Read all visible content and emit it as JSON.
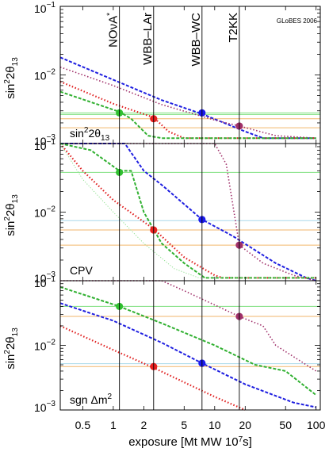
{
  "credit": "GLoBES 2006",
  "chart_data": {
    "type": "line",
    "xlabel": "exposure [Mt MW 10",
    "xlabel_sup": "7",
    "xlabel_end": "s]",
    "xscale": "log",
    "xlim": [
      0.3,
      110
    ],
    "x_ticks": [
      {
        "v": 0.5,
        "label": "0.5"
      },
      {
        "v": 1,
        "label": "1"
      },
      {
        "v": 2,
        "label": "2"
      },
      {
        "v": 5,
        "label": "5"
      },
      {
        "v": 10,
        "label": "10"
      },
      {
        "v": 20,
        "label": "20"
      },
      {
        "v": 50,
        "label": "50"
      },
      {
        "v": 100,
        "label": "100"
      }
    ],
    "experiments": [
      {
        "name": "NOνA",
        "sup": "*",
        "x": 1.15
      },
      {
        "name": "WBB–LAr",
        "sup": "",
        "x": 2.5
      },
      {
        "name": "WBB–WC",
        "sup": "",
        "x": 7.5
      },
      {
        "name": "T2KK",
        "sup": "",
        "x": 17.5
      }
    ],
    "panels": [
      {
        "ylabel_base": "sin",
        "ylabel_sup": "2",
        "ylabel_mid": "2θ",
        "ylabel_sub": "13",
        "title_base": "sin",
        "title_sup": "2",
        "title_mid": "2θ",
        "title_sub": "13",
        "ylim": [
          0.001,
          0.1
        ],
        "y_ticks": [
          {
            "v": 0.001,
            "base": "10",
            "exp": "−3"
          },
          {
            "v": 0.01,
            "base": "10",
            "exp": "−2"
          },
          {
            "v": 0.1,
            "base": "10",
            "exp": "−1"
          }
        ],
        "hlines": [
          {
            "color": "#7fe07f",
            "y": 0.0028
          },
          {
            "color": "#7fe07f",
            "y": 0.00265
          },
          {
            "color": "#f2b66b",
            "y": 0.0023
          },
          {
            "color": "#f2b66b",
            "y": 0.0017
          }
        ],
        "series": [
          {
            "color": "#1f1fe0",
            "dash": "4,2",
            "width": 2,
            "points": [
              [
                0.3,
                0.018
              ],
              [
                1,
                0.0085
              ],
              [
                3,
                0.0043
              ],
              [
                7.5,
                0.0027
              ],
              [
                20,
                0.0015
              ],
              [
                30,
                0.0012
              ],
              [
                100,
                0.0012
              ]
            ]
          },
          {
            "color": "#a0306a",
            "dash": "1.5,2.5",
            "width": 1.6,
            "points": [
              [
                0.3,
                0.013
              ],
              [
                1,
                0.007
              ],
              [
                3,
                0.0037
              ],
              [
                10,
                0.0022
              ],
              [
                17.5,
                0.0018
              ],
              [
                40,
                0.0013
              ],
              [
                100,
                0.0012
              ]
            ]
          },
          {
            "color": "#e02020",
            "dash": "1.5,2.5",
            "width": 2.2,
            "points": [
              [
                0.3,
                0.008
              ],
              [
                1,
                0.0038
              ],
              [
                2.5,
                0.0024
              ],
              [
                3.5,
                0.0015
              ],
              [
                5,
                0.0012
              ],
              [
                100,
                0.0012
              ]
            ]
          },
          {
            "color": "#30b030",
            "dash": "4,2",
            "width": 2,
            "points": [
              [
                0.3,
                0.0057
              ],
              [
                1.15,
                0.0029
              ],
              [
                1.5,
                0.0023
              ],
              [
                2.2,
                0.0013
              ],
              [
                3,
                0.0012
              ],
              [
                100,
                0.0012
              ]
            ]
          }
        ],
        "markers": [
          {
            "color": "#30c030",
            "x": 1.15,
            "y": 0.0028
          },
          {
            "color": "#e82020",
            "x": 2.5,
            "y": 0.0023
          },
          {
            "color": "#1a1aee",
            "x": 7.5,
            "y": 0.0028
          },
          {
            "color": "#a0306a",
            "x": 17.5,
            "y": 0.0018
          }
        ]
      },
      {
        "ylabel_base": "sin",
        "ylabel_sup": "2",
        "ylabel_mid": "2θ",
        "ylabel_sub": "13",
        "title_base": "CPV",
        "title_sup": "",
        "title_mid": "",
        "title_sub": "",
        "ylim": [
          0.001,
          0.1
        ],
        "y_ticks": [
          {
            "v": 0.001,
            "base": "10",
            "exp": "−3"
          },
          {
            "v": 0.01,
            "base": "10",
            "exp": "−2"
          },
          {
            "v": 0.1,
            "base": "10",
            "exp": "−1"
          }
        ],
        "hlines": [
          {
            "color": "#7fe07f",
            "y": 0.038
          },
          {
            "color": "#a8d8ea",
            "y": 0.0075
          },
          {
            "color": "#f2b66b",
            "y": 0.0055
          },
          {
            "color": "#f2b66b",
            "y": 0.0033
          }
        ],
        "series": [
          {
            "color": "#1f1fe0",
            "dash": "4,2",
            "width": 2,
            "points": [
              [
                0.3,
                0.1
              ],
              [
                1.3,
                0.1
              ],
              [
                2,
                0.04
              ],
              [
                3,
                0.025
              ],
              [
                7.5,
                0.0078
              ],
              [
                15,
                0.0045
              ],
              [
                40,
                0.0018
              ],
              [
                80,
                0.0011
              ],
              [
                100,
                0.001
              ]
            ]
          },
          {
            "color": "#a0306a",
            "dash": "1.5,2.5",
            "width": 1.6,
            "points": [
              [
                0.3,
                0.1
              ],
              [
                10,
                0.1
              ],
              [
                13,
                0.05
              ],
              [
                17.5,
                0.0033
              ],
              [
                30,
                0.0018
              ],
              [
                60,
                0.0012
              ],
              [
                100,
                0.001
              ]
            ]
          },
          {
            "color": "#e02020",
            "dash": "1.5,2.5",
            "width": 2.2,
            "points": [
              [
                0.3,
                0.1
              ],
              [
                0.5,
                0.04
              ],
              [
                1,
                0.015
              ],
              [
                2.5,
                0.0057
              ],
              [
                5,
                0.0022
              ],
              [
                10,
                0.0012
              ],
              [
                12,
                0.0011
              ],
              [
                100,
                0.0011
              ]
            ]
          },
          {
            "color": "#30b030",
            "dash": "4,2",
            "width": 2,
            "points": [
              [
                0.3,
                0.1
              ],
              [
                0.6,
                0.08
              ],
              [
                1.15,
                0.04
              ],
              [
                1.5,
                0.04
              ],
              [
                2,
                0.01
              ],
              [
                3,
                0.0035
              ],
              [
                5,
                0.0018
              ],
              [
                8,
                0.0011
              ],
              [
                100,
                0.0011
              ]
            ]
          },
          {
            "color": "#90e090",
            "dash": "1.2,2",
            "width": 1,
            "points": [
              [
                0.3,
                0.1
              ],
              [
                0.5,
                0.03
              ],
              [
                1,
                0.01
              ],
              [
                2,
                0.0035
              ],
              [
                4,
                0.0015
              ],
              [
                7,
                0.0011
              ],
              [
                100,
                0.0011
              ]
            ]
          }
        ],
        "markers": [
          {
            "color": "#30c030",
            "x": 1.15,
            "y": 0.038
          },
          {
            "color": "#e82020",
            "x": 2.5,
            "y": 0.0055
          },
          {
            "color": "#1a1aee",
            "x": 7.5,
            "y": 0.0078
          },
          {
            "color": "#a0306a",
            "x": 17.5,
            "y": 0.0033
          }
        ]
      },
      {
        "ylabel_base": "sin",
        "ylabel_sup": "2",
        "ylabel_mid": "2θ",
        "ylabel_sub": "13",
        "title_base": "sgn Δm",
        "title_sup": "2",
        "title_mid": "",
        "title_sub": "",
        "ylim": [
          0.001,
          0.1
        ],
        "y_ticks": [
          {
            "v": 0.001,
            "base": "10",
            "exp": "−3"
          },
          {
            "v": 0.01,
            "base": "10",
            "exp": "−2"
          },
          {
            "v": 0.1,
            "base": "10",
            "exp": "−1"
          }
        ],
        "hlines": [
          {
            "color": "#7fe07f",
            "y": 0.04
          },
          {
            "color": "#f2b66b",
            "y": 0.028
          },
          {
            "color": "#a8d8ea",
            "y": 0.0052
          },
          {
            "color": "#f2b66b",
            "y": 0.0047
          }
        ],
        "series": [
          {
            "color": "#1f1fe0",
            "dash": "4,2",
            "width": 2,
            "points": [
              [
                0.3,
                0.045
              ],
              [
                1,
                0.024
              ],
              [
                3,
                0.011
              ],
              [
                7.5,
                0.0053
              ],
              [
                20,
                0.0025
              ],
              [
                60,
                0.0013
              ],
              [
                100,
                0.0011
              ]
            ]
          },
          {
            "color": "#a0306a",
            "dash": "1.5,2.5",
            "width": 1.6,
            "points": [
              [
                0.3,
                0.1
              ],
              [
                3,
                0.1
              ],
              [
                5,
                0.07
              ],
              [
                17.5,
                0.028
              ],
              [
                30,
                0.02
              ],
              [
                40,
                0.01
              ],
              [
                100,
                0.004
              ]
            ]
          },
          {
            "color": "#e02020",
            "dash": "1.5,2.5",
            "width": 2.2,
            "points": [
              [
                0.3,
                0.02
              ],
              [
                1,
                0.0085
              ],
              [
                2.5,
                0.0045
              ],
              [
                10,
                0.0016
              ],
              [
                20,
                0.001
              ]
            ]
          },
          {
            "color": "#30b030",
            "dash": "4,2",
            "width": 2,
            "points": [
              [
                0.3,
                0.08
              ],
              [
                1.15,
                0.04
              ],
              [
                3,
                0.022
              ],
              [
                10,
                0.01
              ],
              [
                25,
                0.005
              ],
              [
                50,
                0.004
              ],
              [
                100,
                0.0017
              ]
            ]
          }
        ],
        "markers": [
          {
            "color": "#30c030",
            "x": 1.15,
            "y": 0.04
          },
          {
            "color": "#e82020",
            "x": 2.5,
            "y": 0.0047
          },
          {
            "color": "#1a1aee",
            "x": 7.5,
            "y": 0.0053
          },
          {
            "color": "#a0306a",
            "x": 17.5,
            "y": 0.028
          }
        ]
      }
    ]
  }
}
